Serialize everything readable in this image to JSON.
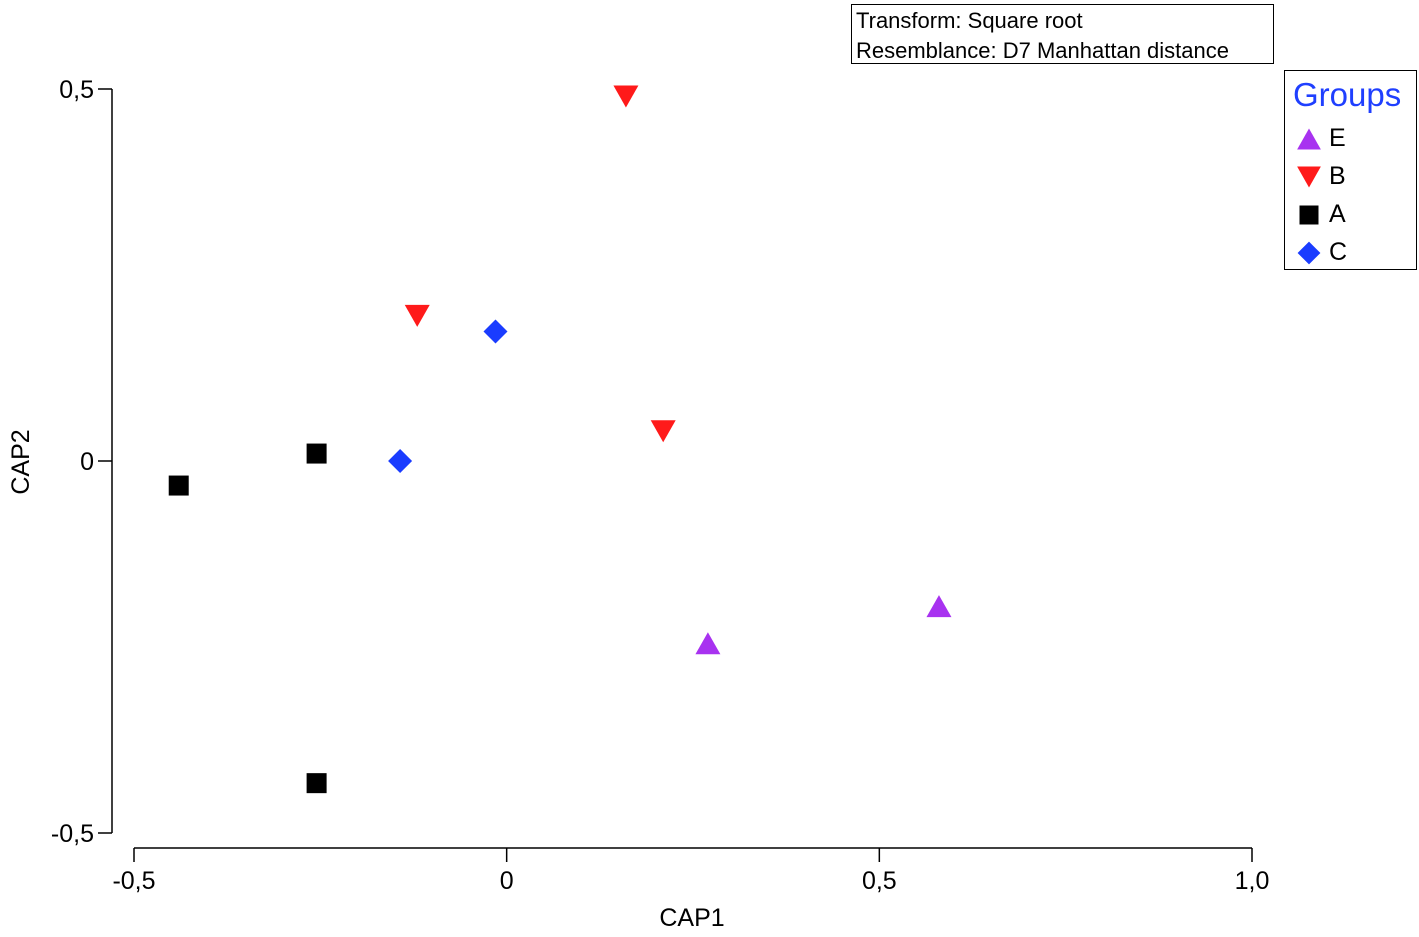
{
  "chart_data": {
    "type": "scatter",
    "xlabel": "CAP1",
    "ylabel": "CAP2",
    "xlim": [
      -0.5,
      1.0
    ],
    "ylim": [
      -0.5,
      0.5
    ],
    "xticks": [
      "-0,5",
      "0",
      "0,5",
      "1,0"
    ],
    "xtick_values": [
      -0.5,
      0,
      0.5,
      1.0
    ],
    "yticks": [
      "0,5",
      "0",
      "-0,5"
    ],
    "ytick_values": [
      0.5,
      0,
      -0.5
    ],
    "grid": false,
    "legend_position": "top-right",
    "legend_title": "Groups",
    "legend_title_color": "#1f3fff",
    "annotation_lines": [
      "Transform: Square root",
      "Resemblance: D7 Manhattan distance"
    ],
    "series": [
      {
        "name": "E",
        "marker": "triangle-up",
        "color": "#a832f0",
        "points": [
          [
            0.27,
            -0.245
          ],
          [
            0.58,
            -0.195
          ]
        ]
      },
      {
        "name": "B",
        "marker": "triangle-down",
        "color": "#ff1a1a",
        "points": [
          [
            0.16,
            0.49
          ],
          [
            -0.12,
            0.195
          ],
          [
            0.21,
            0.04
          ]
        ]
      },
      {
        "name": "A",
        "marker": "square",
        "color": "#000000",
        "points": [
          [
            -0.44,
            -0.033
          ],
          [
            -0.255,
            0.01
          ],
          [
            -0.255,
            -0.433
          ]
        ]
      },
      {
        "name": "C",
        "marker": "diamond",
        "color": "#1a3cff",
        "points": [
          [
            -0.015,
            0.174
          ],
          [
            -0.143,
            0.0
          ]
        ]
      }
    ]
  }
}
